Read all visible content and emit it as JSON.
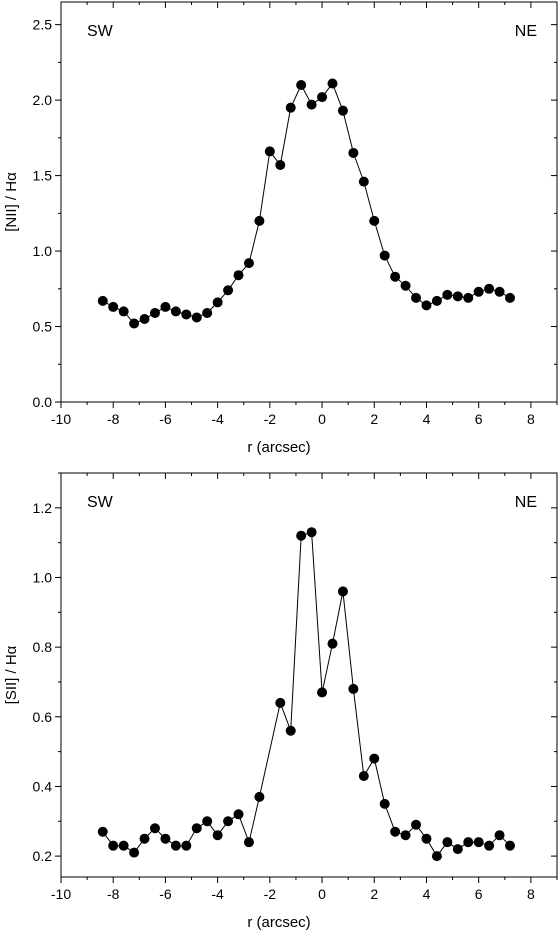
{
  "chart_data": [
    {
      "type": "scatter",
      "title": "",
      "xlabel": "r  (arcsec)",
      "ylabel": "[NII] / Hα",
      "xlim": [
        -10,
        9
      ],
      "ylim": [
        0.0,
        2.65
      ],
      "xticks": [
        -10,
        -8,
        -6,
        -4,
        -2,
        0,
        2,
        4,
        6,
        8
      ],
      "xtick_labels": [
        "-10",
        "-8",
        "-6",
        "-4",
        "-2",
        "0",
        "2",
        "4",
        "6",
        "8"
      ],
      "yticks": [
        0.0,
        0.5,
        1.0,
        1.5,
        2.0,
        2.5
      ],
      "ytick_labels": [
        "0.0",
        "0.5",
        "1.0",
        "1.5",
        "2.0",
        "2.5"
      ],
      "y_minor_step": 0.25,
      "x_minor_step": 1,
      "labels": {
        "left": "SW",
        "right": "NE"
      },
      "series": [
        {
          "x": [
            -8.4,
            -8.0,
            -7.6,
            -7.2,
            -6.8,
            -6.4,
            -6.0,
            -5.6,
            -5.2,
            -4.8,
            -4.4,
            -4.0,
            -3.6,
            -3.2,
            -2.8,
            -2.4,
            -2.0,
            -1.6,
            -1.2,
            -0.8,
            -0.4,
            0.0,
            0.4,
            0.8,
            1.2,
            1.6,
            2.0,
            2.4,
            2.8,
            3.2,
            3.6,
            4.0,
            4.4,
            4.8,
            5.2,
            5.6,
            6.0,
            6.4,
            6.8,
            7.2
          ],
          "y": [
            0.67,
            0.63,
            0.6,
            0.52,
            0.55,
            0.59,
            0.63,
            0.6,
            0.58,
            0.56,
            0.59,
            0.66,
            0.74,
            0.84,
            0.92,
            1.2,
            1.66,
            1.57,
            1.95,
            2.1,
            1.97,
            2.02,
            2.11,
            1.93,
            1.65,
            1.46,
            1.2,
            0.97,
            0.83,
            0.77,
            0.69,
            0.64,
            0.67,
            0.71,
            0.7,
            0.69,
            0.73,
            0.75,
            0.73,
            0.69
          ]
        }
      ]
    },
    {
      "type": "scatter",
      "title": "",
      "xlabel": "r  (arcsec)",
      "ylabel": "[SII] / Hα",
      "xlim": [
        -10,
        9
      ],
      "ylim": [
        0.14,
        1.3
      ],
      "xticks": [
        -10,
        -8,
        -6,
        -4,
        -2,
        0,
        2,
        4,
        6,
        8
      ],
      "xtick_labels": [
        "-10",
        "-8",
        "-6",
        "-4",
        "-2",
        "0",
        "2",
        "4",
        "6",
        "8"
      ],
      "yticks": [
        0.2,
        0.4,
        0.6,
        0.8,
        1.0,
        1.2
      ],
      "ytick_labels": [
        "0.2",
        "0.4",
        "0.6",
        "0.8",
        "1.0",
        "1.2"
      ],
      "y_minor_step": 0.1,
      "x_minor_step": 1,
      "labels": {
        "left": "SW",
        "right": "NE"
      },
      "series": [
        {
          "x": [
            -8.4,
            -8.0,
            -7.6,
            -7.2,
            -6.8,
            -6.4,
            -6.0,
            -5.6,
            -5.2,
            -4.8,
            -4.4,
            -4.0,
            -3.6,
            -3.2,
            -2.8,
            -2.4,
            -1.6,
            -1.2,
            -0.8,
            -0.4,
            0.0,
            0.4,
            0.8,
            1.2,
            1.6,
            2.0,
            2.4,
            2.8,
            3.2,
            3.6,
            4.0,
            4.4,
            4.8,
            5.2,
            5.6,
            6.0,
            6.4,
            6.8,
            7.2
          ],
          "y": [
            0.27,
            0.23,
            0.23,
            0.21,
            0.25,
            0.28,
            0.25,
            0.23,
            0.23,
            0.28,
            0.3,
            0.26,
            0.3,
            0.32,
            0.24,
            0.37,
            0.64,
            0.56,
            1.12,
            1.13,
            0.67,
            0.81,
            0.96,
            0.68,
            0.43,
            0.48,
            0.35,
            0.27,
            0.26,
            0.29,
            0.25,
            0.2,
            0.24,
            0.22,
            0.24,
            0.24,
            0.23,
            0.26,
            0.23
          ]
        }
      ]
    }
  ]
}
